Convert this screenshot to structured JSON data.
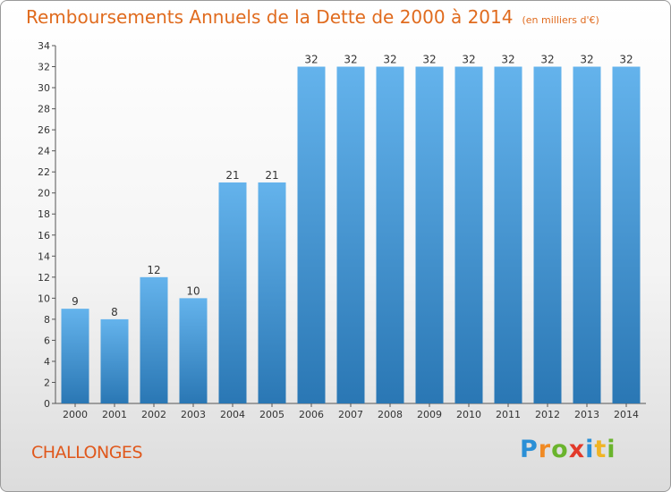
{
  "header": {
    "title": "Remboursements Annuels de la Dette de 2000 à 2014",
    "unit": "(en milliers d'€)"
  },
  "footer": {
    "commune": "CHALLONGES",
    "logo": "Proxiti"
  },
  "colors": {
    "bar_light": "#62b0ea",
    "bar_dark": "#2a77b4",
    "title": "#e06b1e"
  },
  "chart_data": {
    "type": "bar",
    "title": "Remboursements Annuels de la Dette de 2000 à 2014",
    "subtitle": "(en milliers d'€)",
    "xlabel": "",
    "ylabel": "",
    "categories": [
      "2000",
      "2001",
      "2002",
      "2003",
      "2004",
      "2005",
      "2006",
      "2007",
      "2008",
      "2009",
      "2010",
      "2011",
      "2012",
      "2013",
      "2014"
    ],
    "values": [
      9,
      8,
      12,
      10,
      21,
      21,
      32,
      32,
      32,
      32,
      32,
      32,
      32,
      32,
      32
    ],
    "ylim": [
      0,
      34
    ],
    "yticks": [
      0,
      2,
      4,
      6,
      8,
      10,
      12,
      14,
      16,
      18,
      20,
      22,
      24,
      26,
      28,
      30,
      32,
      34
    ],
    "grid": false,
    "legend": "none"
  }
}
